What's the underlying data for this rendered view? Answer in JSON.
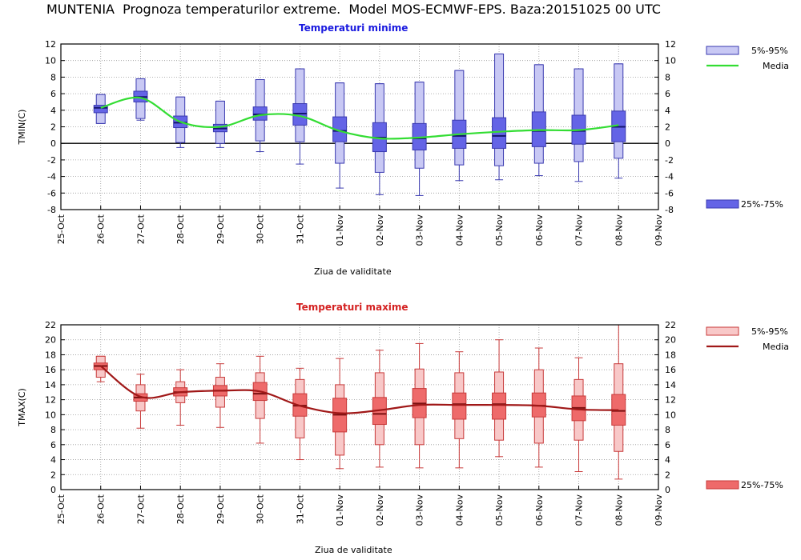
{
  "page_title": "MUNTENIA  Prognoza temperaturilor extreme.  Model MOS-ECMWF-EPS. Baza:20151025 00 UTC",
  "chart_data": [
    {
      "type": "box",
      "title": "Temperaturi minime",
      "title_color": "#1a1adf",
      "ylabel": "TMIN(C)",
      "xlabel": "Ziua de validitate",
      "ylim": [
        -8,
        12
      ],
      "ytick_step": 2,
      "categories": [
        "25-Oct",
        "26-Oct",
        "27-Oct",
        "28-Oct",
        "29-Oct",
        "30-Oct",
        "31-Oct",
        "01-Nov",
        "02-Nov",
        "03-Nov",
        "04-Nov",
        "05-Nov",
        "06-Nov",
        "07-Nov",
        "08-Nov",
        "09-Nov"
      ],
      "legend": {
        "outer": "5%-95%",
        "mean": "Media",
        "inner": "25%-75%"
      },
      "colors": {
        "outer_fill": "#c8c8f4",
        "inner_fill": "#6464e6",
        "edge": "#3a3ab0",
        "median": "#14146e",
        "mean_line": "#33dd33"
      },
      "boxes": [
        {
          "day": "26-Oct",
          "p5": 2.4,
          "p25": 3.7,
          "median": 4.3,
          "p75": 4.6,
          "p95": 5.9,
          "min": 2.4,
          "max": 5.9
        },
        {
          "day": "27-Oct",
          "p5": 3.0,
          "p25": 5.0,
          "median": 5.6,
          "p75": 6.3,
          "p95": 7.8,
          "min": 2.8,
          "max": 7.8
        },
        {
          "day": "28-Oct",
          "p5": 0.1,
          "p25": 1.9,
          "median": 2.5,
          "p75": 3.3,
          "p95": 5.6,
          "min": -0.5,
          "max": 5.6
        },
        {
          "day": "29-Oct",
          "p5": 0.0,
          "p25": 1.4,
          "median": 1.8,
          "p75": 2.3,
          "p95": 5.1,
          "min": -0.5,
          "max": 5.1
        },
        {
          "day": "30-Oct",
          "p5": 0.3,
          "p25": 2.8,
          "median": 3.5,
          "p75": 4.4,
          "p95": 7.7,
          "min": -1.0,
          "max": 7.7
        },
        {
          "day": "31-Oct",
          "p5": 0.2,
          "p25": 2.2,
          "median": 3.6,
          "p75": 4.8,
          "p95": 9.0,
          "min": -2.5,
          "max": 9.0
        },
        {
          "day": "01-Nov",
          "p5": -2.4,
          "p25": 0.2,
          "median": 1.5,
          "p75": 3.2,
          "p95": 7.3,
          "min": -5.4,
          "max": 7.3
        },
        {
          "day": "02-Nov",
          "p5": -3.5,
          "p25": -1.0,
          "median": 0.7,
          "p75": 2.5,
          "p95": 7.2,
          "min": -6.2,
          "max": 7.2
        },
        {
          "day": "03-Nov",
          "p5": -3.0,
          "p25": -0.8,
          "median": 0.6,
          "p75": 2.4,
          "p95": 7.4,
          "min": -6.3,
          "max": 7.4
        },
        {
          "day": "04-Nov",
          "p5": -2.6,
          "p25": -0.6,
          "median": 0.9,
          "p75": 2.8,
          "p95": 8.8,
          "min": -4.5,
          "max": 8.8
        },
        {
          "day": "05-Nov",
          "p5": -2.7,
          "p25": -0.6,
          "median": 0.9,
          "p75": 3.1,
          "p95": 10.8,
          "min": -4.4,
          "max": 10.8
        },
        {
          "day": "06-Nov",
          "p5": -2.4,
          "p25": -0.4,
          "median": 1.5,
          "p75": 3.8,
          "p95": 9.5,
          "min": -3.9,
          "max": 9.5
        },
        {
          "day": "07-Nov",
          "p5": -2.2,
          "p25": -0.1,
          "median": 1.5,
          "p75": 3.4,
          "p95": 9.0,
          "min": -4.6,
          "max": 9.0
        },
        {
          "day": "08-Nov",
          "p5": -1.8,
          "p25": 0.2,
          "median": 2.0,
          "p75": 3.9,
          "p95": 9.6,
          "min": -4.2,
          "max": 9.6
        }
      ],
      "mean_series": {
        "x": [
          "26-Oct",
          "27-Oct",
          "28-Oct",
          "29-Oct",
          "30-Oct",
          "31-Oct",
          "01-Nov",
          "02-Nov",
          "03-Nov",
          "04-Nov",
          "05-Nov",
          "06-Nov",
          "07-Nov",
          "08-Nov"
        ],
        "y": [
          4.3,
          5.5,
          2.6,
          2.0,
          3.4,
          3.3,
          1.5,
          0.6,
          0.7,
          1.1,
          1.4,
          1.6,
          1.6,
          2.2
        ]
      }
    },
    {
      "type": "box",
      "title": "Temperaturi maxime",
      "title_color": "#d42222",
      "ylabel": "TMAX(C)",
      "xlabel": "Ziua de validitate",
      "ylim": [
        0,
        22
      ],
      "ytick_step": 2,
      "categories": [
        "25-Oct",
        "26-Oct",
        "27-Oct",
        "28-Oct",
        "29-Oct",
        "30-Oct",
        "31-Oct",
        "01-Nov",
        "02-Nov",
        "03-Nov",
        "04-Nov",
        "05-Nov",
        "06-Nov",
        "07-Nov",
        "08-Nov",
        "09-Nov"
      ],
      "legend": {
        "outer": "5%-95%",
        "mean": "Media",
        "inner": "25%-75%"
      },
      "colors": {
        "outer_fill": "#f8c8c8",
        "inner_fill": "#ee6a6a",
        "edge": "#c83a3a",
        "median": "#7a1010",
        "mean_line": "#a01818"
      },
      "boxes": [
        {
          "day": "26-Oct",
          "p5": 15.0,
          "p25": 16.0,
          "median": 16.5,
          "p75": 16.9,
          "p95": 17.8,
          "min": 14.4,
          "max": 17.8
        },
        {
          "day": "27-Oct",
          "p5": 10.5,
          "p25": 11.8,
          "median": 12.3,
          "p75": 12.8,
          "p95": 14.0,
          "min": 8.2,
          "max": 15.4
        },
        {
          "day": "28-Oct",
          "p5": 11.6,
          "p25": 12.5,
          "median": 13.0,
          "p75": 13.6,
          "p95": 14.4,
          "min": 8.6,
          "max": 16.0
        },
        {
          "day": "29-Oct",
          "p5": 11.0,
          "p25": 12.5,
          "median": 13.2,
          "p75": 13.9,
          "p95": 15.0,
          "min": 8.3,
          "max": 16.8
        },
        {
          "day": "30-Oct",
          "p5": 9.5,
          "p25": 11.9,
          "median": 12.8,
          "p75": 14.3,
          "p95": 15.6,
          "min": 6.2,
          "max": 17.8
        },
        {
          "day": "31-Oct",
          "p5": 6.9,
          "p25": 9.8,
          "median": 11.2,
          "p75": 12.8,
          "p95": 14.7,
          "min": 4.0,
          "max": 16.2
        },
        {
          "day": "01-Nov",
          "p5": 4.6,
          "p25": 7.7,
          "median": 10.0,
          "p75": 12.2,
          "p95": 14.0,
          "min": 2.8,
          "max": 17.5
        },
        {
          "day": "02-Nov",
          "p5": 6.0,
          "p25": 8.7,
          "median": 10.1,
          "p75": 12.3,
          "p95": 15.6,
          "min": 3.0,
          "max": 18.6
        },
        {
          "day": "03-Nov",
          "p5": 6.0,
          "p25": 9.6,
          "median": 11.5,
          "p75": 13.5,
          "p95": 16.1,
          "min": 2.9,
          "max": 19.5
        },
        {
          "day": "04-Nov",
          "p5": 6.8,
          "p25": 9.4,
          "median": 11.4,
          "p75": 12.9,
          "p95": 15.6,
          "min": 2.9,
          "max": 18.4
        },
        {
          "day": "05-Nov",
          "p5": 6.6,
          "p25": 9.4,
          "median": 11.4,
          "p75": 12.9,
          "p95": 15.7,
          "min": 4.4,
          "max": 20.0
        },
        {
          "day": "06-Nov",
          "p5": 6.2,
          "p25": 9.7,
          "median": 11.2,
          "p75": 12.9,
          "p95": 16.0,
          "min": 3.0,
          "max": 18.9
        },
        {
          "day": "07-Nov",
          "p5": 6.6,
          "p25": 9.2,
          "median": 10.9,
          "p75": 12.5,
          "p95": 14.7,
          "min": 2.4,
          "max": 17.6
        },
        {
          "day": "08-Nov",
          "p5": 5.1,
          "p25": 8.6,
          "median": 10.5,
          "p75": 12.7,
          "p95": 16.8,
          "min": 1.4,
          "max": 22.0
        }
      ],
      "mean_series": {
        "x": [
          "26-Oct",
          "27-Oct",
          "28-Oct",
          "29-Oct",
          "30-Oct",
          "31-Oct",
          "01-Nov",
          "02-Nov",
          "03-Nov",
          "04-Nov",
          "05-Nov",
          "06-Nov",
          "07-Nov",
          "08-Nov"
        ],
        "y": [
          16.5,
          12.4,
          13.0,
          13.2,
          13.1,
          11.2,
          10.2,
          10.6,
          11.3,
          11.3,
          11.3,
          11.2,
          10.7,
          10.6
        ]
      }
    }
  ]
}
